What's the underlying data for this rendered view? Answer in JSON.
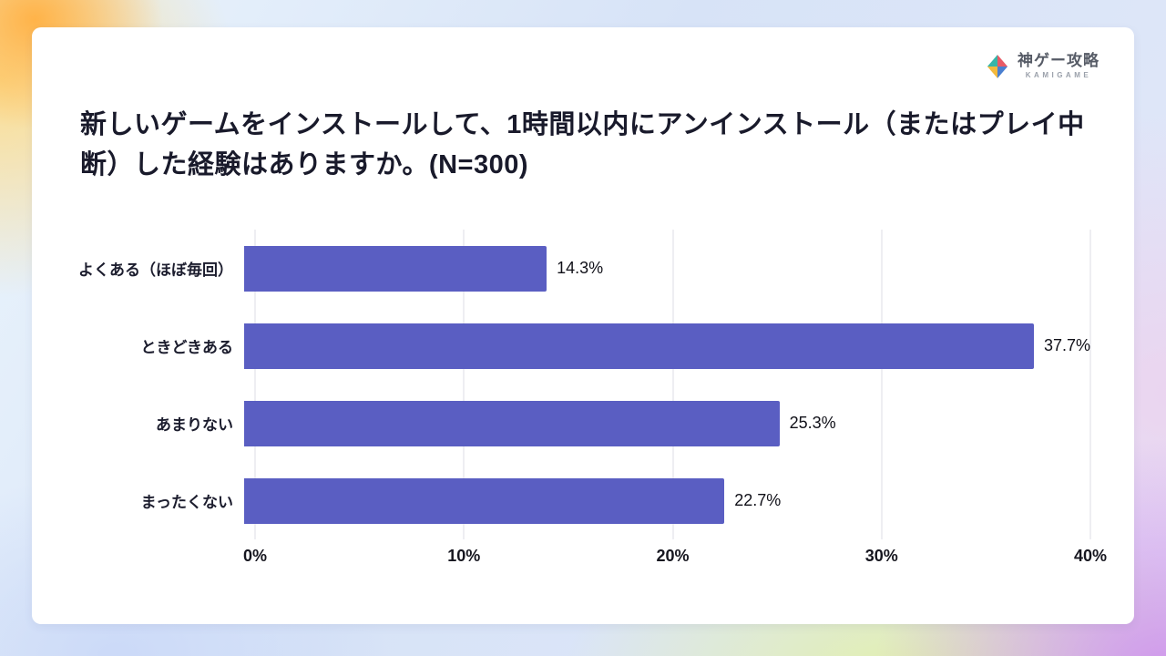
{
  "logo": {
    "name": "神ゲー攻略",
    "subtitle": "KAMIGAME",
    "mark_colors": {
      "teal": "#35b5a9",
      "pink": "#e85a66",
      "yellow": "#f3b93c",
      "blue": "#4a7fd0"
    }
  },
  "title": "新しいゲームをインストールして、1時間以内にアンインストール（またはプレイ中断）した経験はありますか。(N=300)",
  "chart_data": {
    "type": "bar",
    "orientation": "horizontal",
    "title": "新しいゲームをインストールして、1時間以内にアンインストール（またはプレイ中断）した経験はありますか。(N=300)",
    "sample_size": "N=300",
    "categories": [
      "よくある（ほぼ毎回）",
      "ときどきある",
      "あまりない",
      "まったくない"
    ],
    "values": [
      14.3,
      37.7,
      25.3,
      22.7
    ],
    "value_labels": [
      "14.3%",
      "37.7%",
      "25.3%",
      "22.7%"
    ],
    "xlim": [
      0,
      40
    ],
    "ticks": [
      0,
      10,
      20,
      30,
      40
    ],
    "tick_labels": [
      "0%",
      "10%",
      "20%",
      "30%",
      "40%"
    ],
    "bar_color": "#5a5ec2",
    "grid": true,
    "legend": "none",
    "xlabel": "",
    "ylabel": ""
  }
}
